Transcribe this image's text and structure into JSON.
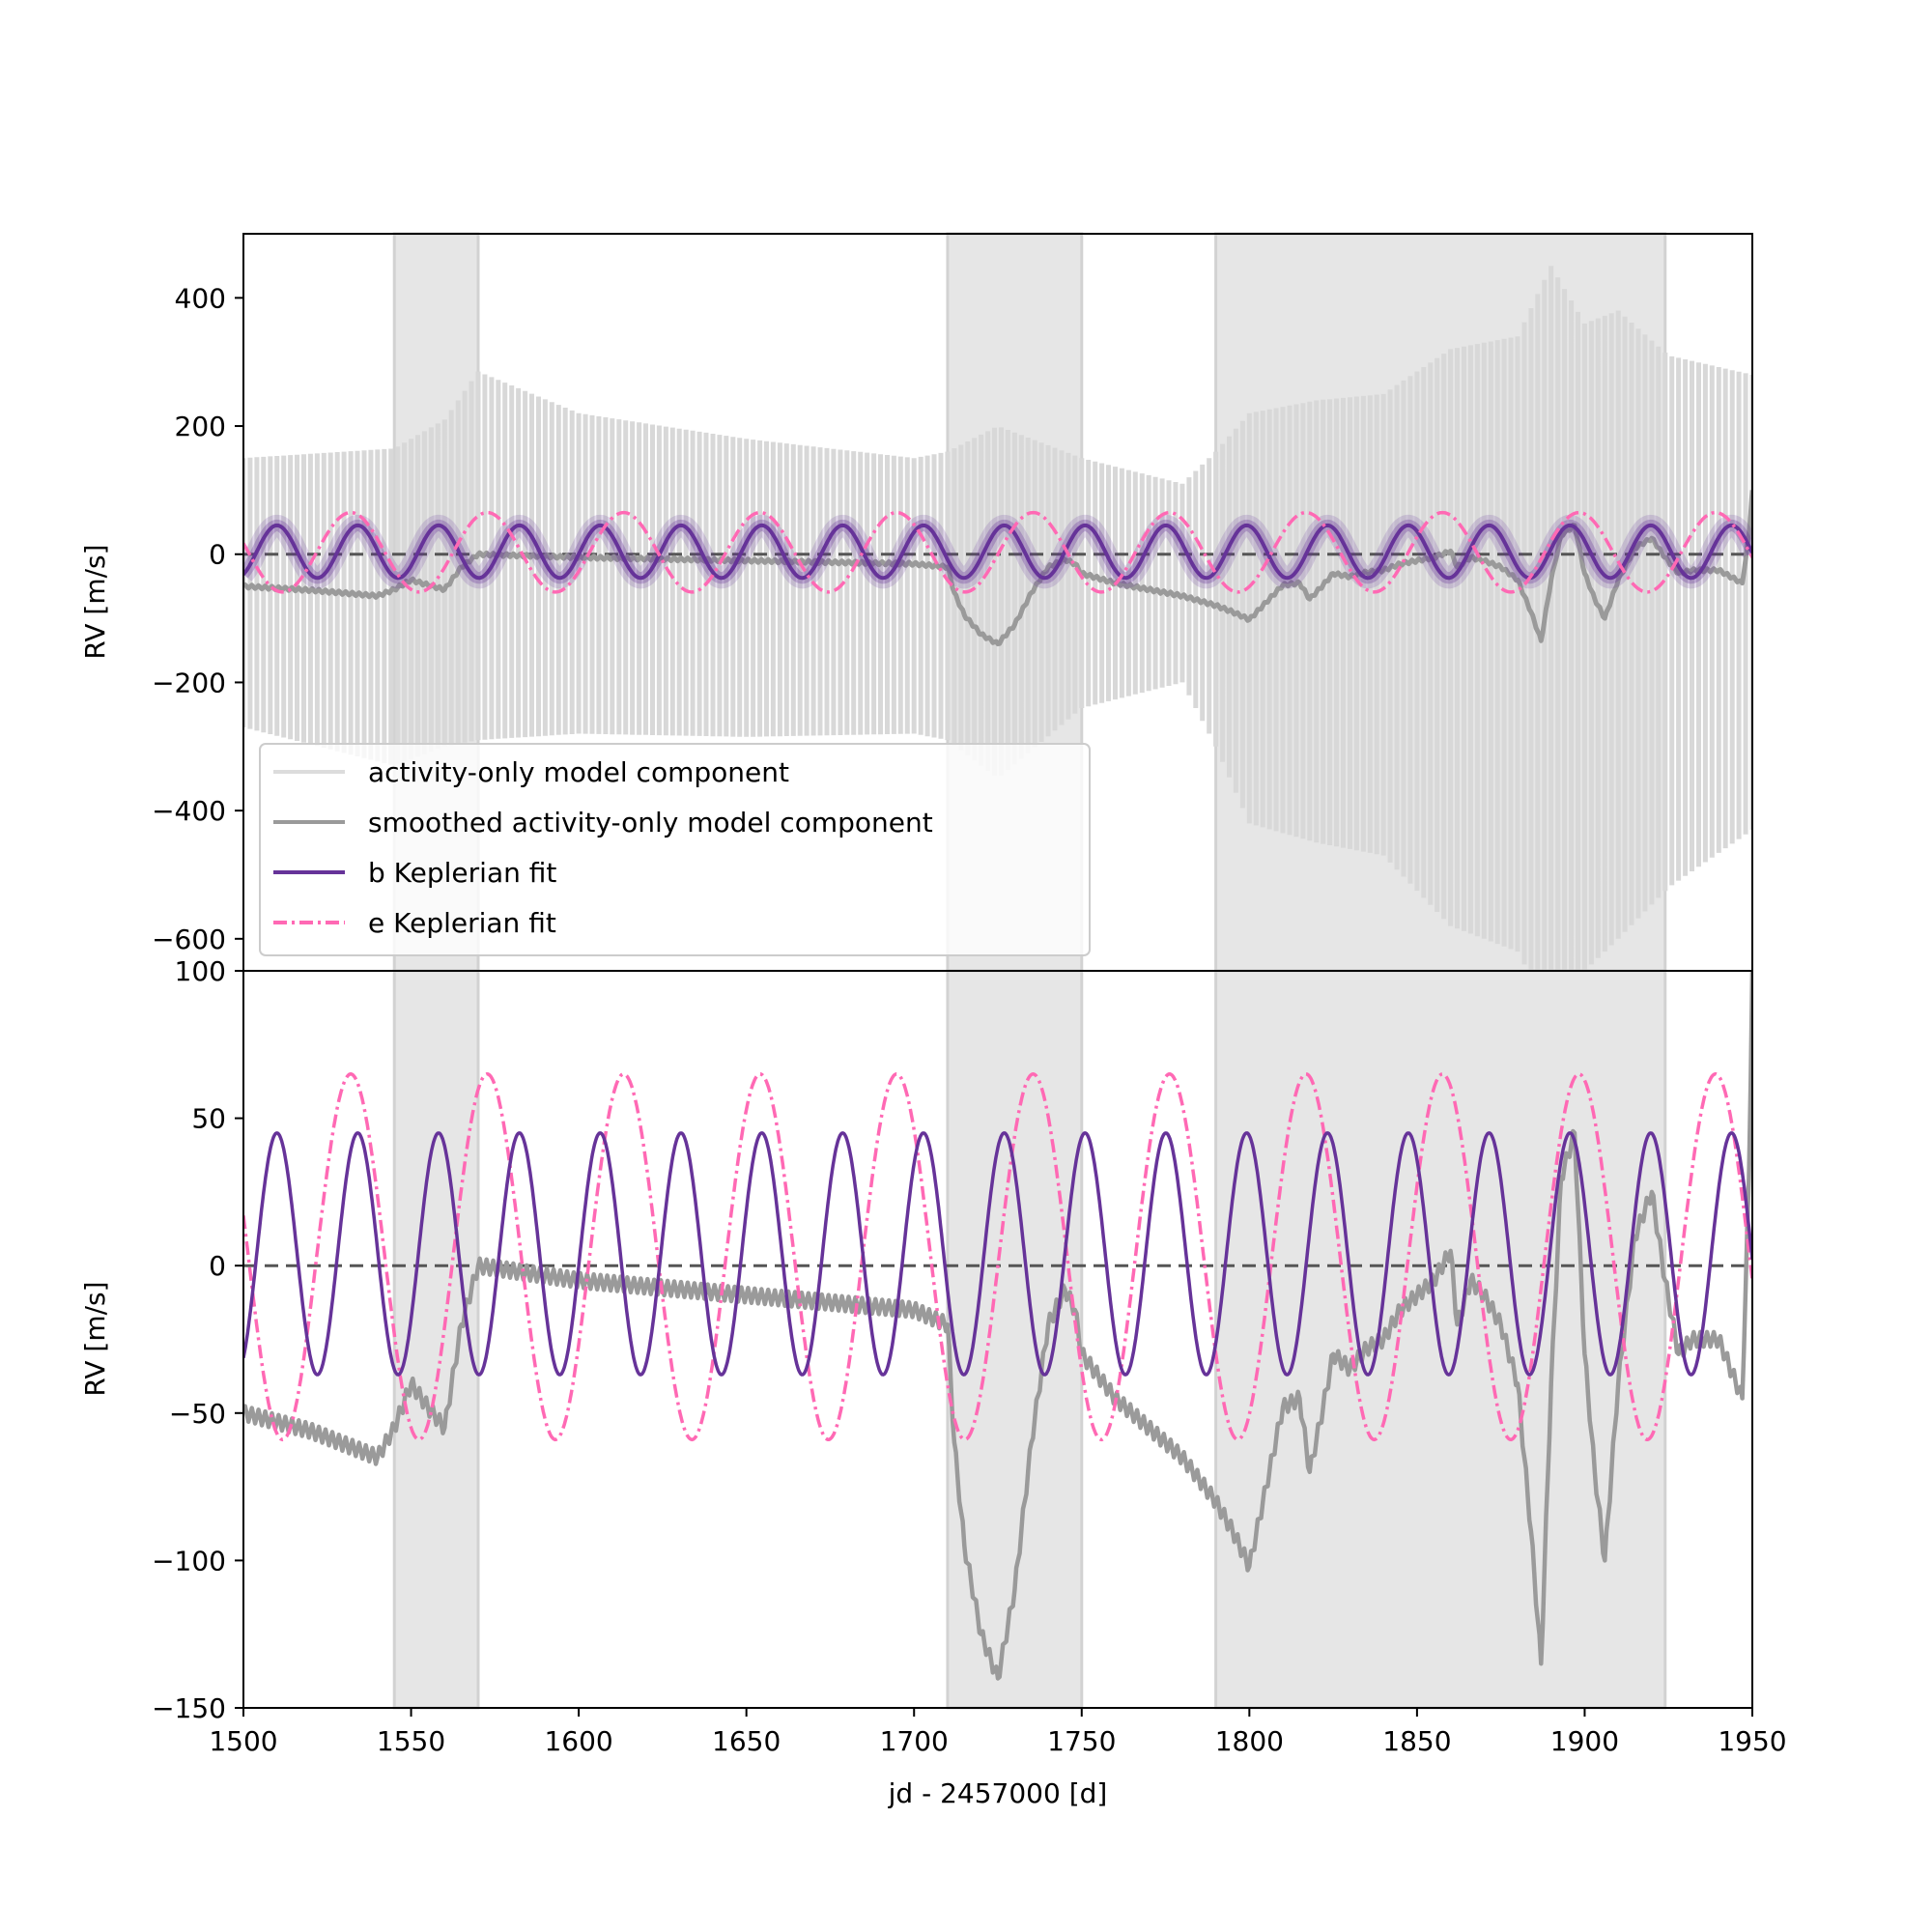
{
  "chart_data": [
    {
      "panel": "top",
      "type": "line",
      "title": "",
      "xlabel": "",
      "ylabel": "RV [m/s]",
      "xlim": [
        1500,
        1950
      ],
      "ylim": [
        -650,
        500
      ],
      "yticks": [
        "400",
        "200",
        "0",
        "−200",
        "−400",
        "−600"
      ],
      "ytick_values": [
        400,
        200,
        0,
        -200,
        -400,
        -600
      ],
      "shaded_x_ranges": [
        [
          1545,
          1570
        ],
        [
          1710,
          1750
        ],
        [
          1790,
          1924
        ]
      ],
      "zero_line": {
        "y": 0,
        "style": "dashed",
        "color": "#555555"
      },
      "legend": {
        "placement": "lower-left",
        "entries": [
          {
            "label": "activity-only model component",
            "color": "#dcdcdc",
            "style": "solid"
          },
          {
            "label": "smoothed activity-only model component",
            "color": "#9a9a9a",
            "style": "solid"
          },
          {
            "label": "b Keplerian fit",
            "color": "#663399",
            "style": "solid"
          },
          {
            "label": "e Keplerian fit",
            "color": "#ff69b4",
            "style": "dashdot"
          }
        ]
      },
      "series": [
        {
          "name": "activity-only model component",
          "color": "#d8d8d8",
          "oscillation_period": 2.0,
          "envelope": {
            "x": [
              1500,
              1545,
              1560,
              1570,
              1600,
              1650,
              1700,
              1710,
              1725,
              1750,
              1780,
              1790,
              1800,
              1820,
              1840,
              1860,
              1880,
              1890,
              1900,
              1910,
              1925,
              1950
            ],
            "upper": [
              150,
              165,
              210,
              285,
              220,
              180,
              150,
              160,
              200,
              150,
              110,
              160,
              220,
              240,
              250,
              320,
              340,
              450,
              360,
              380,
              310,
              280
            ],
            "lower": [
              -270,
              -330,
              -300,
              -290,
              -280,
              -285,
              -280,
              -290,
              -350,
              -240,
              -200,
              -300,
              -420,
              -450,
              -470,
              -580,
              -620,
              -720,
              -650,
              -600,
              -520,
              -430
            ]
          }
        },
        {
          "name": "smoothed activity-only model component",
          "color": "#9a9a9a",
          "oscillation_period": 2.0,
          "x": [
            1500,
            1520,
            1540,
            1545,
            1550,
            1555,
            1560,
            1565,
            1570,
            1600,
            1650,
            1700,
            1710,
            1712,
            1715,
            1720,
            1725,
            1730,
            1735,
            1740,
            1745,
            1748,
            1750,
            1760,
            1780,
            1790,
            1795,
            1800,
            1805,
            1810,
            1815,
            1818,
            1822,
            1825,
            1830,
            1835,
            1840,
            1845,
            1850,
            1855,
            1860,
            1862,
            1866,
            1870,
            1875,
            1880,
            1884,
            1887,
            1890,
            1893,
            1897,
            1900,
            1903,
            1906,
            1910,
            1915,
            1920,
            1924,
            1928,
            1932,
            1940,
            1947,
            1949,
            1950
          ],
          "y": [
            -50,
            -56,
            -65,
            -55,
            -40,
            -48,
            -55,
            -20,
            0,
            -5,
            -10,
            -15,
            -20,
            -60,
            -95,
            -125,
            -140,
            -110,
            -60,
            -20,
            -8,
            -15,
            -30,
            -45,
            -65,
            -80,
            -90,
            -102,
            -75,
            -48,
            -45,
            -70,
            -48,
            -30,
            -35,
            -28,
            -25,
            -15,
            -10,
            -5,
            5,
            -20,
            -5,
            -10,
            -20,
            -40,
            -90,
            -135,
            -40,
            30,
            45,
            -30,
            -70,
            -100,
            -40,
            10,
            25,
            -5,
            -30,
            -25,
            -25,
            -45,
            30,
            100
          ]
        },
        {
          "name": "b Keplerian fit",
          "color": "#663399",
          "period": 24.1,
          "min": -37,
          "max": 45,
          "peak_x": [
            1510,
            1534,
            1558,
            1582,
            1606,
            1630,
            1655,
            1679,
            1703,
            1727,
            1751,
            1775,
            1799,
            1823,
            1847,
            1871,
            1896,
            1920,
            1944
          ]
        },
        {
          "name": "e Keplerian fit",
          "color": "#ff69b4",
          "style": "dashdot",
          "period": 40.7,
          "min": -59,
          "max": 65,
          "peak_x": [
            1532,
            1572,
            1613,
            1654,
            1694,
            1735,
            1776,
            1816,
            1857,
            1898,
            1938
          ]
        }
      ]
    },
    {
      "panel": "bottom",
      "type": "line",
      "title": "",
      "xlabel": "jd - 2457000 [d]",
      "ylabel": "RV [m/s]",
      "xlim": [
        1500,
        1950
      ],
      "ylim": [
        -150,
        100
      ],
      "xticks": [
        "1500",
        "1550",
        "1600",
        "1650",
        "1700",
        "1750",
        "1800",
        "1850",
        "1900",
        "1950"
      ],
      "xtick_values": [
        1500,
        1550,
        1600,
        1650,
        1700,
        1750,
        1800,
        1850,
        1900,
        1950
      ],
      "yticks": [
        "100",
        "50",
        "0",
        "−50",
        "−100",
        "−150"
      ],
      "ytick_values": [
        100,
        50,
        0,
        -50,
        -100,
        -150
      ],
      "shaded_x_ranges": [
        [
          1545,
          1570
        ],
        [
          1710,
          1750
        ],
        [
          1790,
          1924
        ]
      ],
      "zero_line": {
        "y": 0,
        "style": "dashed",
        "color": "#555555"
      },
      "series_names": [
        "smoothed activity-only model component",
        "b Keplerian fit",
        "e Keplerian fit"
      ]
    }
  ]
}
